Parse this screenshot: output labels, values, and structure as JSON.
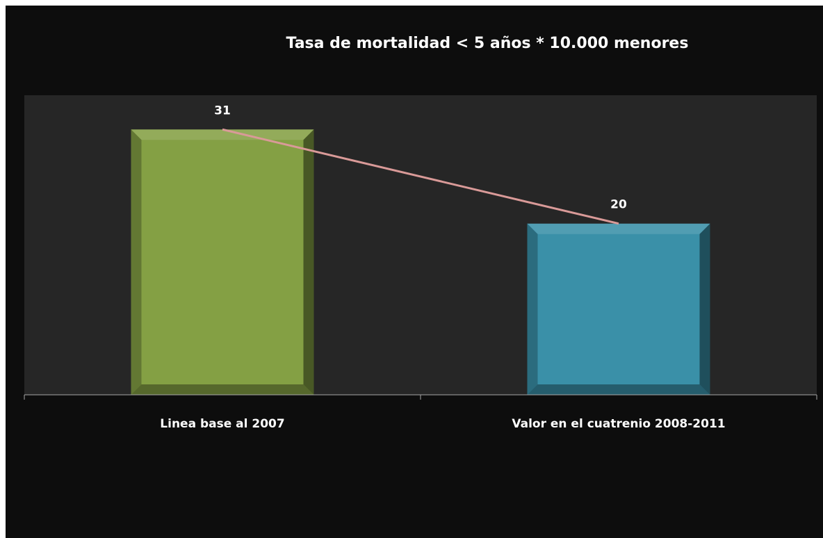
{
  "chart_data": {
    "type": "bar",
    "title": "Tasa de mortalidad < 5 años * 10.000 menores",
    "categories": [
      "Linea base al 2007",
      "Valor en el cuatrenio 2008-2011"
    ],
    "values": [
      31,
      20
    ],
    "colors": [
      "#84a044",
      "#3a90a8"
    ],
    "line_color": "#d99a98",
    "ylim": [
      0,
      35
    ]
  }
}
